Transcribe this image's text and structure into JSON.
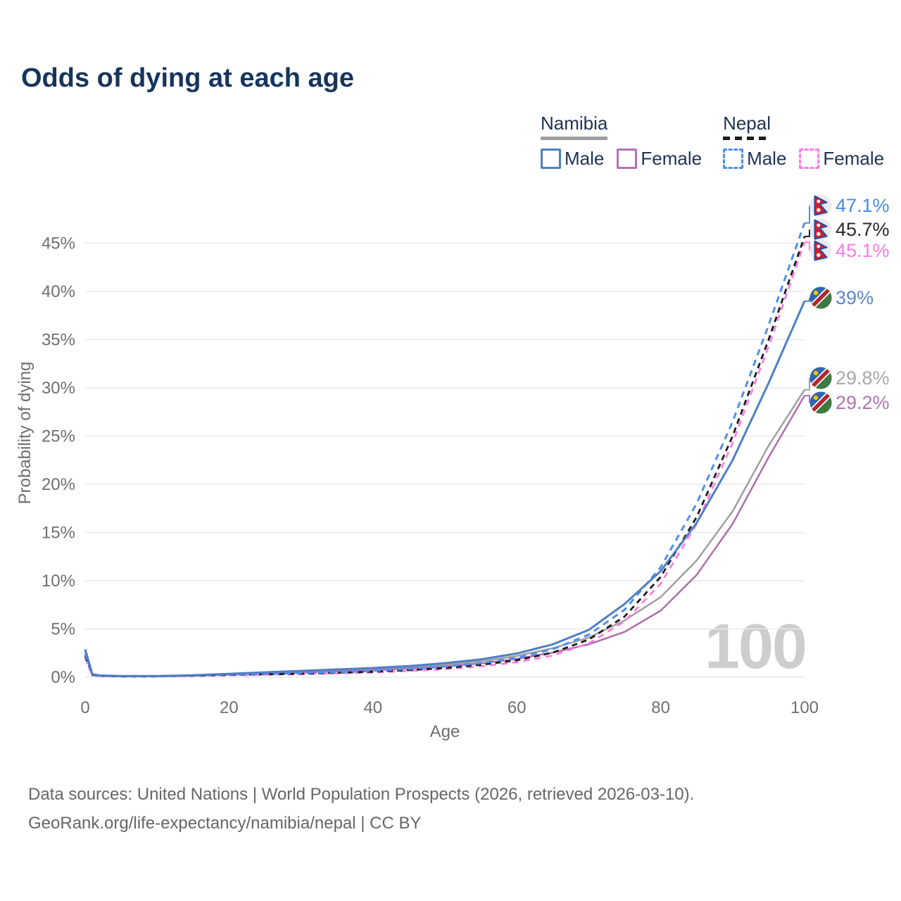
{
  "title": "Odds of dying at each age",
  "watermark": "100",
  "legend": {
    "groups": [
      {
        "country": "Namibia",
        "line_style": "solid",
        "line_color": "#9e9e9e",
        "items": [
          {
            "label": "Male",
            "color": "#4e7fc4",
            "dash": false
          },
          {
            "label": "Female",
            "color": "#b673b2",
            "dash": false
          }
        ]
      },
      {
        "country": "Nepal",
        "line_style": "dashed",
        "line_color": "#1c1c1c",
        "items": [
          {
            "label": "Male",
            "color": "#4e8ef2",
            "dash": true
          },
          {
            "label": "Female",
            "color": "#ff7ce5",
            "dash": true
          }
        ]
      }
    ]
  },
  "chart_data": {
    "type": "line",
    "title": "Odds of dying at each age",
    "xlabel": "Age",
    "ylabel": "Probability of dying",
    "xlim": [
      0,
      100
    ],
    "ylim_pct": [
      0,
      48
    ],
    "grid": "horizontal",
    "xticks": [
      0,
      20,
      40,
      60,
      80,
      100
    ],
    "yticks": [
      0,
      5,
      10,
      15,
      20,
      25,
      30,
      35,
      40,
      45
    ],
    "x": [
      0,
      1,
      2,
      5,
      10,
      15,
      20,
      25,
      30,
      35,
      40,
      45,
      50,
      55,
      60,
      65,
      70,
      75,
      80,
      85,
      90,
      95,
      100
    ],
    "series": [
      {
        "id": "nepal-male",
        "name": "Nepal male",
        "flag": "nepal",
        "color": "#4e8ef2",
        "label_color": "#468be8",
        "dash": "9 7",
        "width": 3,
        "end_label": "47.1%",
        "values": [
          2.4,
          0.25,
          0.15,
          0.1,
          0.1,
          0.18,
          0.28,
          0.35,
          0.42,
          0.52,
          0.65,
          0.85,
          1.1,
          1.45,
          2.0,
          2.9,
          4.4,
          7.0,
          11.4,
          18.0,
          26.5,
          36.5,
          47.1
        ]
      },
      {
        "id": "nepal-total",
        "name": "Nepal both sexes",
        "flag": "nepal",
        "color": "#1c1c1c",
        "label_color": "#2a2a2a",
        "dash": "8 6",
        "width": 2.8,
        "end_label": "45.7%",
        "values": [
          2.2,
          0.22,
          0.13,
          0.09,
          0.09,
          0.16,
          0.24,
          0.3,
          0.36,
          0.45,
          0.56,
          0.73,
          0.95,
          1.28,
          1.75,
          2.55,
          3.9,
          6.3,
          10.4,
          16.6,
          25.0,
          35.0,
          45.7
        ]
      },
      {
        "id": "nepal-female",
        "name": "Nepal female",
        "flag": "nepal",
        "color": "#ff7ce5",
        "label_color": "#fb7ce8",
        "dash": "9 7",
        "width": 2.8,
        "end_label": "45.1%",
        "values": [
          2.0,
          0.2,
          0.12,
          0.08,
          0.08,
          0.13,
          0.2,
          0.25,
          0.31,
          0.39,
          0.49,
          0.64,
          0.84,
          1.12,
          1.55,
          2.25,
          3.5,
          5.8,
          9.7,
          15.9,
          24.3,
          34.3,
          45.1
        ]
      },
      {
        "id": "namibia-male",
        "name": "Namibia male",
        "flag": "namibia",
        "color": "#4e7fc4",
        "label_color": "#5c86c6",
        "dash": "",
        "width": 3,
        "end_label": "39%",
        "values": [
          2.9,
          0.3,
          0.18,
          0.12,
          0.12,
          0.2,
          0.35,
          0.5,
          0.65,
          0.8,
          0.95,
          1.15,
          1.45,
          1.85,
          2.45,
          3.4,
          4.9,
          7.6,
          11.0,
          16.0,
          22.5,
          30.5,
          39.0
        ]
      },
      {
        "id": "namibia-total",
        "name": "Namibia both sexes",
        "flag": "namibia",
        "color": "#a0a0a0",
        "label_color": "#a8a8a8",
        "dash": "",
        "width": 2.5,
        "end_label": "29.8%",
        "values": [
          2.7,
          0.28,
          0.16,
          0.11,
          0.11,
          0.18,
          0.3,
          0.44,
          0.57,
          0.7,
          0.84,
          1.02,
          1.28,
          1.65,
          2.2,
          3.0,
          4.1,
          5.9,
          8.3,
          12.1,
          17.2,
          24.0,
          29.8
        ]
      },
      {
        "id": "namibia-female",
        "name": "Namibia female",
        "flag": "namibia",
        "color": "#ad6fad",
        "label_color": "#b173ae",
        "dash": "",
        "width": 2.5,
        "end_label": "29.2%",
        "values": [
          2.4,
          0.26,
          0.15,
          0.1,
          0.1,
          0.15,
          0.25,
          0.37,
          0.48,
          0.6,
          0.72,
          0.88,
          1.1,
          1.42,
          1.9,
          2.55,
          3.4,
          4.7,
          6.9,
          10.6,
          15.9,
          22.8,
          29.2
        ]
      }
    ]
  },
  "footer": {
    "line1": "Data sources: United Nations | World Population Prospects (2026, retrieved 2026-03-10).",
    "line2": "GeoRank.org/life-expectancy/namibia/nepal | CC BY"
  }
}
